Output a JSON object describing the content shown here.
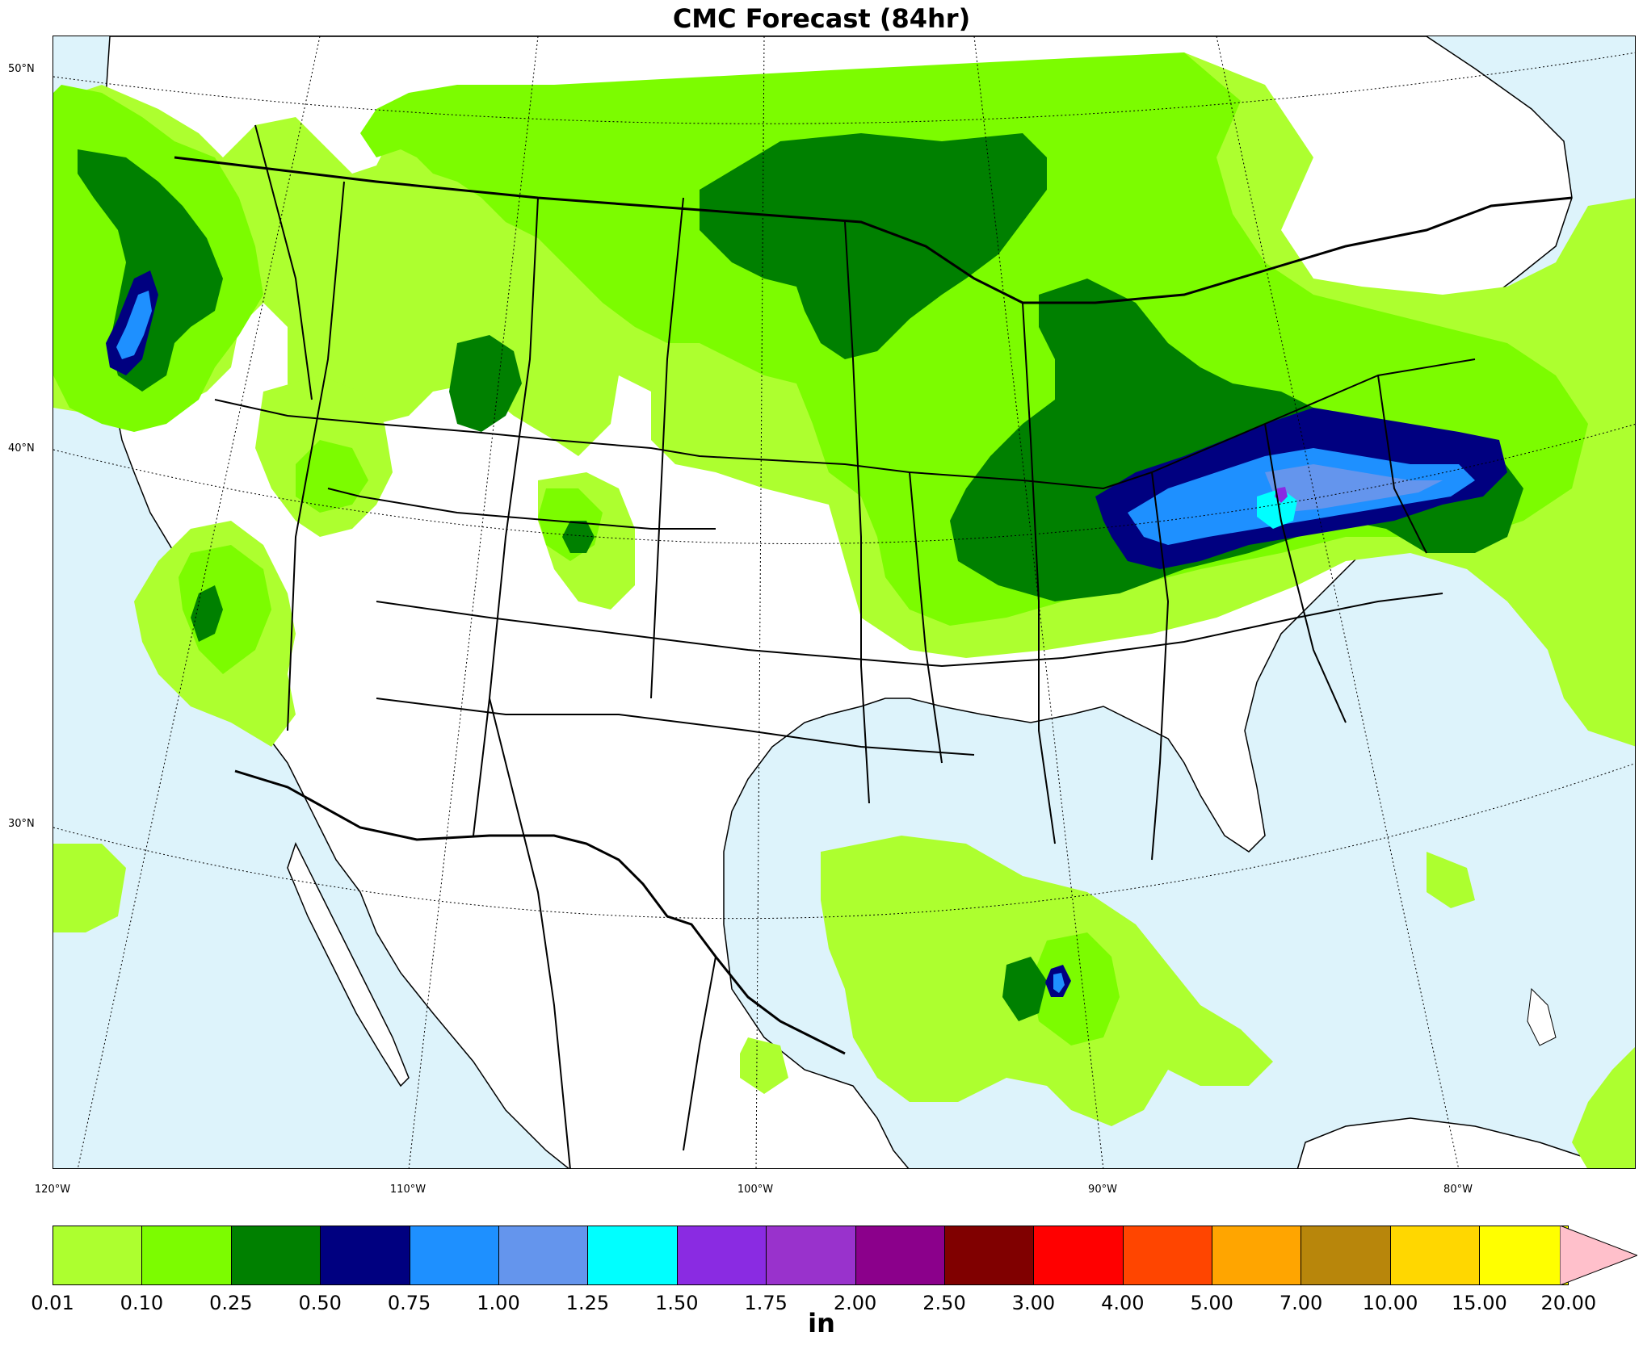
{
  "title": "CMC Forecast (84hr)",
  "map": {
    "lat_labels": [
      "50°N",
      "40°N",
      "30°N"
    ],
    "lon_labels": [
      "120°W",
      "110°W",
      "100°W",
      "90°W",
      "80°W"
    ],
    "colors": {
      "ocean": "#ddf3fb",
      "land": "#ffffff",
      "borders": "#000000"
    }
  },
  "colorbar": {
    "units": "in",
    "ticks": [
      "0.01",
      "0.10",
      "0.25",
      "0.50",
      "0.75",
      "1.00",
      "1.25",
      "1.50",
      "1.75",
      "2.00",
      "2.50",
      "3.00",
      "4.00",
      "5.00",
      "7.00",
      "10.00",
      "15.00",
      "20.00"
    ],
    "colors": [
      "#adff2f",
      "#7cfc00",
      "#008000",
      "#000080",
      "#1e90ff",
      "#6495ed",
      "#00ffff",
      "#8a2be2",
      "#9932cc",
      "#8b008b",
      "#800000",
      "#ff0000",
      "#ff4500",
      "#ffa500",
      "#b8860b",
      "#ffd700",
      "#ffff00"
    ],
    "extend_color": "#ffc0cb"
  }
}
